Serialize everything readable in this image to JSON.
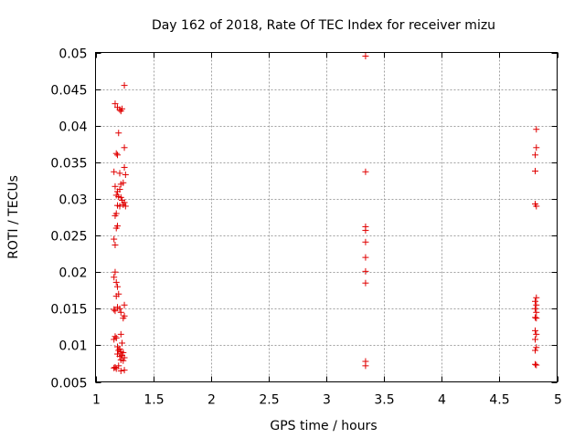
{
  "chart_data": {
    "type": "scatter",
    "title": "Day 162 of 2018, Rate Of TEC Index for receiver mizu",
    "xlabel": "GPS time / hours",
    "ylabel": "ROTI / TECUs",
    "xlim": [
      1,
      5
    ],
    "ylim": [
      0.005,
      0.05
    ],
    "xticks": [
      1,
      1.5,
      2,
      2.5,
      3,
      3.5,
      4,
      4.5,
      5
    ],
    "xtick_labels": [
      "1",
      "1.5",
      "2",
      "2.5",
      "3",
      "3.5",
      "4",
      "4.5",
      "5"
    ],
    "yticks": [
      0.005,
      0.01,
      0.015,
      0.02,
      0.025,
      0.03,
      0.035,
      0.04,
      0.045,
      0.05
    ],
    "ytick_labels": [
      "0.005",
      "0.01",
      "0.015",
      "0.02",
      "0.025",
      "0.03",
      "0.035",
      "0.04",
      "0.045",
      "0.05"
    ],
    "grid": true,
    "marker": "+",
    "color": "#e00000",
    "series": [
      {
        "name": "ROTI",
        "points": [
          [
            1.25,
            0.0455
          ],
          [
            1.17,
            0.043
          ],
          [
            1.19,
            0.0425
          ],
          [
            1.21,
            0.0422
          ],
          [
            1.22,
            0.042
          ],
          [
            1.23,
            0.0423
          ],
          [
            1.2,
            0.039
          ],
          [
            1.25,
            0.037
          ],
          [
            1.19,
            0.036
          ],
          [
            1.18,
            0.0362
          ],
          [
            1.16,
            0.0337
          ],
          [
            1.21,
            0.0335
          ],
          [
            1.25,
            0.0343
          ],
          [
            1.26,
            0.0333
          ],
          [
            1.22,
            0.032
          ],
          [
            1.24,
            0.0322
          ],
          [
            1.17,
            0.0317
          ],
          [
            1.21,
            0.0313
          ],
          [
            1.19,
            0.031
          ],
          [
            1.18,
            0.0305
          ],
          [
            1.2,
            0.0303
          ],
          [
            1.22,
            0.0302
          ],
          [
            1.23,
            0.0298
          ],
          [
            1.25,
            0.0295
          ],
          [
            1.24,
            0.0292
          ],
          [
            1.19,
            0.0291
          ],
          [
            1.21,
            0.029
          ],
          [
            1.26,
            0.029
          ],
          [
            1.18,
            0.028
          ],
          [
            1.17,
            0.0277
          ],
          [
            1.19,
            0.0263
          ],
          [
            1.18,
            0.026
          ],
          [
            1.16,
            0.0245
          ],
          [
            1.17,
            0.0237
          ],
          [
            1.17,
            0.02
          ],
          [
            1.16,
            0.0193
          ],
          [
            1.18,
            0.0186
          ],
          [
            1.19,
            0.018
          ],
          [
            1.2,
            0.017
          ],
          [
            1.18,
            0.0167
          ],
          [
            1.25,
            0.0155
          ],
          [
            1.19,
            0.0152
          ],
          [
            1.21,
            0.015
          ],
          [
            1.16,
            0.0149
          ],
          [
            1.17,
            0.0147
          ],
          [
            1.22,
            0.0145
          ],
          [
            1.25,
            0.014
          ],
          [
            1.24,
            0.0137
          ],
          [
            1.17,
            0.0112
          ],
          [
            1.18,
            0.011
          ],
          [
            1.16,
            0.0108
          ],
          [
            1.22,
            0.0115
          ],
          [
            1.23,
            0.0103
          ],
          [
            1.19,
            0.0098
          ],
          [
            1.21,
            0.0095
          ],
          [
            1.2,
            0.0093
          ],
          [
            1.22,
            0.0091
          ],
          [
            1.24,
            0.009
          ],
          [
            1.19,
            0.0088
          ],
          [
            1.23,
            0.0086
          ],
          [
            1.21,
            0.0085
          ],
          [
            1.25,
            0.0083
          ],
          [
            1.22,
            0.008
          ],
          [
            1.24,
            0.0079
          ],
          [
            1.17,
            0.007
          ],
          [
            1.18,
            0.0068
          ],
          [
            1.16,
            0.0069
          ],
          [
            1.2,
            0.0072
          ],
          [
            1.25,
            0.0066
          ],
          [
            1.22,
            0.0065
          ],
          [
            3.34,
            0.0495
          ],
          [
            3.34,
            0.0337
          ],
          [
            3.34,
            0.0262
          ],
          [
            3.34,
            0.0257
          ],
          [
            3.34,
            0.0241
          ],
          [
            3.34,
            0.022
          ],
          [
            3.34,
            0.0201
          ],
          [
            3.34,
            0.0185
          ],
          [
            3.34,
            0.0078
          ],
          [
            3.34,
            0.0072
          ],
          [
            4.82,
            0.0395
          ],
          [
            4.82,
            0.037
          ],
          [
            4.81,
            0.036
          ],
          [
            4.81,
            0.0338
          ],
          [
            4.81,
            0.0293
          ],
          [
            4.82,
            0.029
          ],
          [
            4.82,
            0.0165
          ],
          [
            4.81,
            0.016
          ],
          [
            4.82,
            0.0155
          ],
          [
            4.81,
            0.015
          ],
          [
            4.82,
            0.0145
          ],
          [
            4.81,
            0.0138
          ],
          [
            4.82,
            0.0137
          ],
          [
            4.81,
            0.012
          ],
          [
            4.82,
            0.0115
          ],
          [
            4.81,
            0.0108
          ],
          [
            4.82,
            0.0097
          ],
          [
            4.81,
            0.0093
          ],
          [
            4.81,
            0.0074
          ],
          [
            4.82,
            0.0073
          ]
        ]
      }
    ]
  }
}
